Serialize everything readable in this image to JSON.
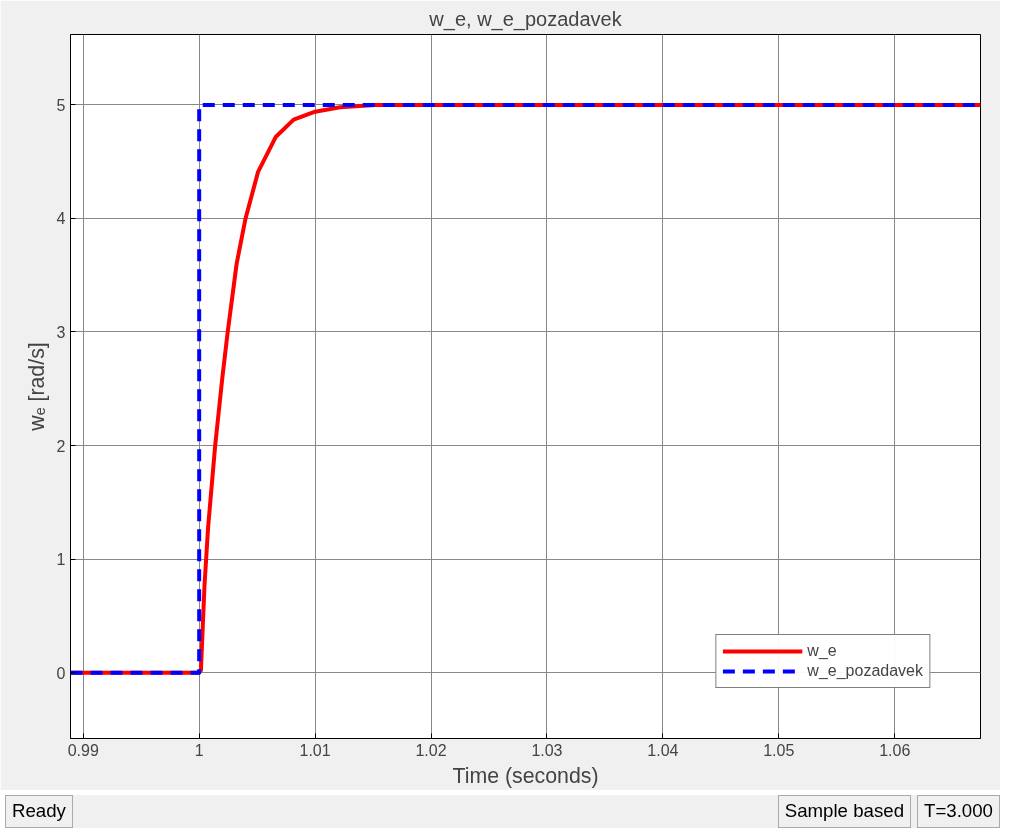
{
  "chart_data": {
    "type": "line",
    "title": "w_e, w_e_pozadavek",
    "xlabel": "Time (seconds)",
    "ylabel": "wₑ [rad/s]",
    "xlim": [
      0.9889,
      1.0674
    ],
    "ylim": [
      -0.58,
      5.62
    ],
    "xticks": [
      0.99,
      1,
      1.01,
      1.02,
      1.03,
      1.04,
      1.05,
      1.06
    ],
    "yticks": [
      0,
      1,
      2,
      3,
      4,
      5
    ],
    "grid": true,
    "legend": "bottom right",
    "series": [
      {
        "name": "w_e",
        "color": "#ff0000",
        "line_style": "solid",
        "x": [
          0.9889,
          1.0,
          1.00015,
          1.00046,
          1.00077,
          1.00138,
          1.002,
          1.00246,
          1.00323,
          1.004,
          1.00508,
          1.00662,
          1.00815,
          1.01,
          1.01215,
          1.0152,
          1.0674
        ],
        "values": [
          0,
          0,
          0.02,
          0.77,
          1.28,
          2.0,
          2.6,
          3.0,
          3.6,
          4.0,
          4.41,
          4.72,
          4.87,
          4.94,
          4.98,
          5.0,
          5.0
        ]
      },
      {
        "name": "w_e_pozadavek",
        "color": "#0000ff",
        "line_style": "dashed",
        "x": [
          0.9889,
          1.0,
          1.0,
          1.0674
        ],
        "values": [
          0,
          0,
          5,
          5
        ]
      }
    ],
    "annotations": [
      "Ready",
      "Sample based",
      "T=3.000"
    ]
  }
}
